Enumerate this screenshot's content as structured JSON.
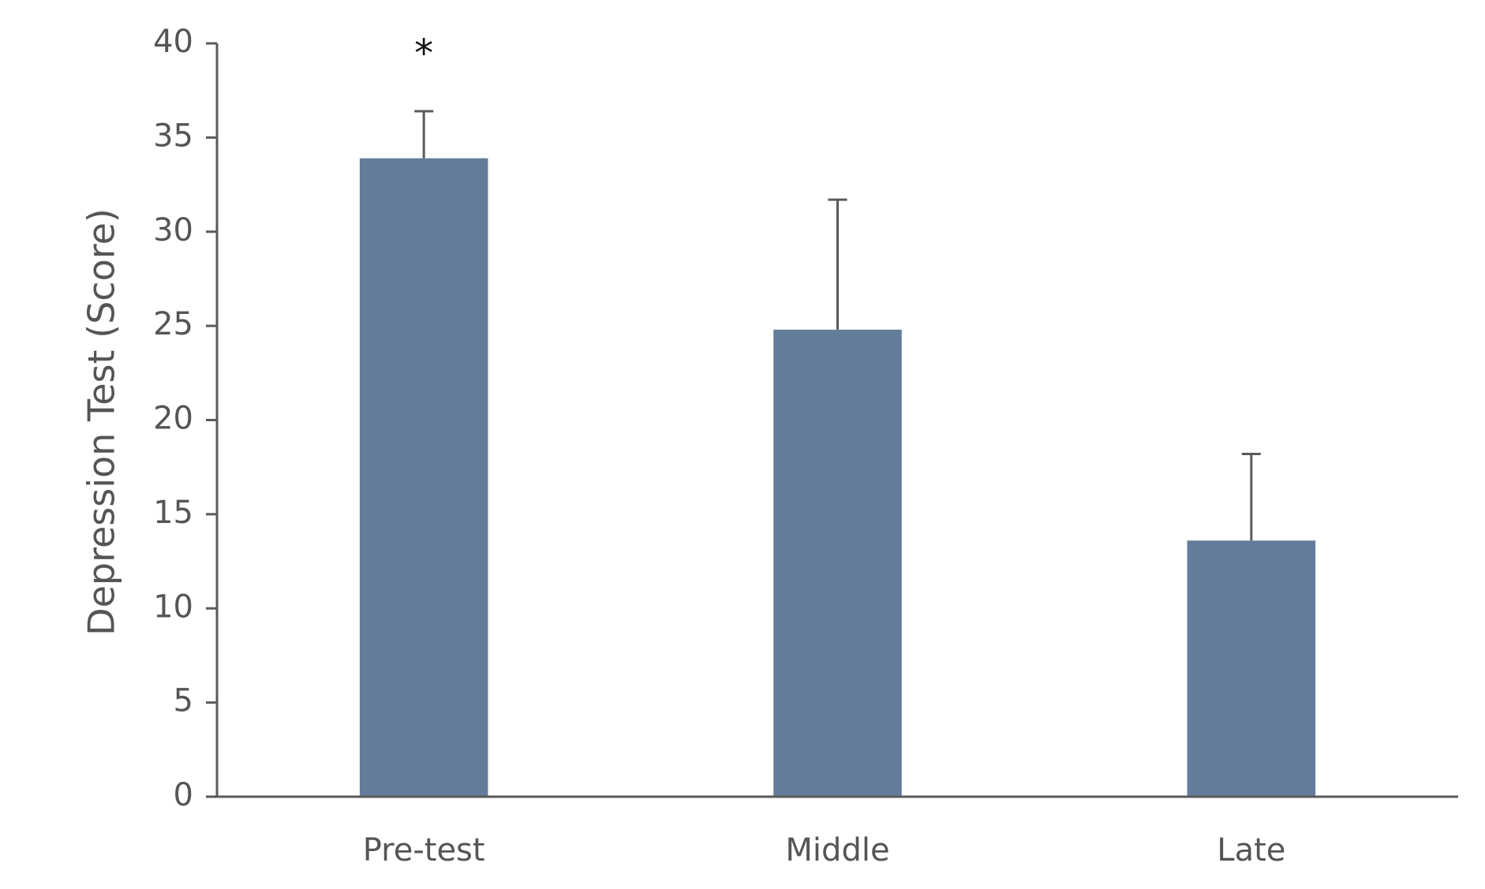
{
  "chart_data": {
    "type": "bar",
    "y_label": "Depression Test (Score)",
    "categories": [
      "Pre-test",
      "Middle",
      "Late"
    ],
    "values": [
      33.9,
      24.8,
      13.6
    ],
    "errors": [
      2.5,
      6.9,
      4.6
    ],
    "annotations": [
      "*",
      null,
      null
    ],
    "color": "#647c9c",
    "ylim": [
      0,
      40
    ],
    "yticks": [
      0,
      5,
      10,
      15,
      20,
      25,
      30,
      35,
      40
    ],
    "grid": false
  }
}
